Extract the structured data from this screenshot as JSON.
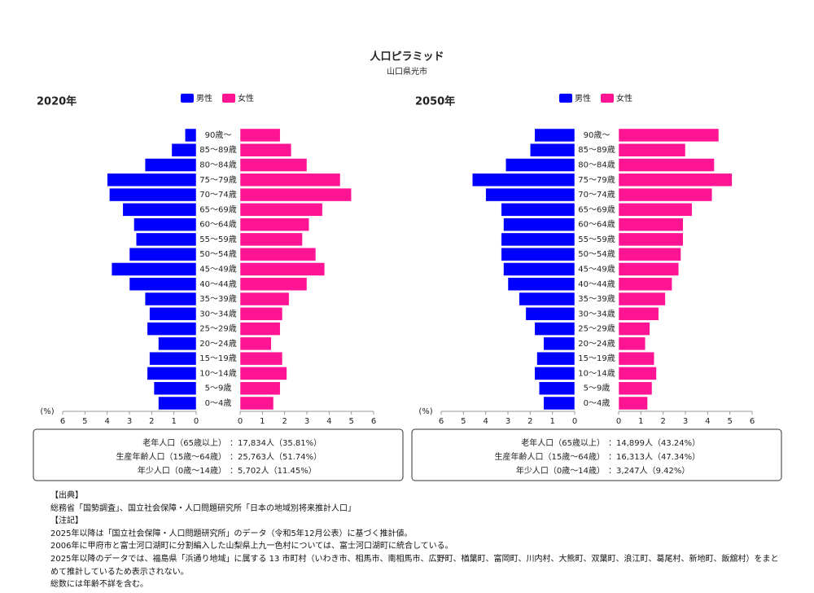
{
  "header": {
    "title": "人口ピラミッド",
    "subtitle": "山口県光市"
  },
  "chart_data": [
    {
      "type": "pyramid",
      "title": "2020年",
      "xlabel": "(%)",
      "categories": [
        "0～4歳",
        "5～9歳",
        "10～14歳",
        "15～19歳",
        "20～24歳",
        "25～29歳",
        "30～34歳",
        "35～39歳",
        "40～44歳",
        "45～49歳",
        "50～54歳",
        "55～59歳",
        "60～64歳",
        "65～69歳",
        "70～74歳",
        "75～79歳",
        "80～84歳",
        "85～89歳",
        "90歳～"
      ],
      "series": [
        {
          "name": "男性",
          "color": "#0000ff",
          "values": [
            1.7,
            1.9,
            2.2,
            2.1,
            1.7,
            2.2,
            2.1,
            2.3,
            3.0,
            3.8,
            3.0,
            2.7,
            2.8,
            3.3,
            3.9,
            4.0,
            2.3,
            1.1,
            0.5
          ]
        },
        {
          "name": "女性",
          "color": "#ff1493",
          "values": [
            1.5,
            1.8,
            2.1,
            1.9,
            1.4,
            1.8,
            1.9,
            2.2,
            3.0,
            3.8,
            3.4,
            2.8,
            3.1,
            3.7,
            5.0,
            4.5,
            3.0,
            2.3,
            1.8
          ]
        }
      ],
      "xlim": [
        0,
        6
      ],
      "xticks": [
        0,
        1,
        2,
        3,
        4,
        5,
        6
      ],
      "grid": false,
      "summary": [
        {
          "label": "老年人口（65歳以上）",
          "value": "：17,834人（35.81%）"
        },
        {
          "label": "生産年齢人口（15歳～64歳）",
          "value": "：25,763人（51.74%）"
        },
        {
          "label": "年少人口（0歳～14歳）",
          "value": "：5,702人（11.45%）"
        }
      ]
    },
    {
      "type": "pyramid",
      "title": "2050年",
      "xlabel": "(%)",
      "categories": [
        "0～4歳",
        "5～9歳",
        "10～14歳",
        "15～19歳",
        "20～24歳",
        "25～29歳",
        "30～34歳",
        "35～39歳",
        "40～44歳",
        "45～49歳",
        "50～54歳",
        "55～59歳",
        "60～64歳",
        "65～69歳",
        "70～74歳",
        "75～79歳",
        "80～84歳",
        "85～89歳",
        "90歳～"
      ],
      "series": [
        {
          "name": "男性",
          "color": "#0000ff",
          "values": [
            1.4,
            1.6,
            1.8,
            1.7,
            1.4,
            1.8,
            2.2,
            2.5,
            3.0,
            3.2,
            3.3,
            3.3,
            3.2,
            3.3,
            4.0,
            4.6,
            3.1,
            2.0,
            1.8
          ]
        },
        {
          "name": "女性",
          "color": "#ff1493",
          "values": [
            1.3,
            1.5,
            1.7,
            1.6,
            1.2,
            1.4,
            1.8,
            2.1,
            2.4,
            2.7,
            2.8,
            2.9,
            2.9,
            3.3,
            4.2,
            5.1,
            4.3,
            3.0,
            4.5
          ]
        }
      ],
      "xlim": [
        0,
        6
      ],
      "xticks": [
        0,
        1,
        2,
        3,
        4,
        5,
        6
      ],
      "grid": false,
      "summary": [
        {
          "label": "老年人口（65歳以上）",
          "value": "：14,899人（43.24%）"
        },
        {
          "label": "生産年齢人口（15歳～64歳）",
          "value": "：16,313人（47.34%）"
        },
        {
          "label": "年少人口（0歳～14歳）",
          "value": "：3,247人（9.42%）"
        }
      ]
    }
  ],
  "footer": {
    "source_heading": "【出典】",
    "source": "総務省「国勢調査」、国立社会保障・人口問題研究所「日本の地域別将来推計人口」",
    "notes_heading": "【注記】",
    "notes": [
      "2025年以降は「国立社会保障・人口問題研究所」のデータ（令和5年12月公表）に基づく推計値。",
      "2006年に甲府市と富士河口湖町に分割編入した山梨県上九一色村については、富士河口湖町に統合している。",
      "2025年以降のデータでは、福島県「浜通り地域」に属する 13 市町村（いわき市、相馬市、南相馬市、広野町、楢葉町、富岡町、川内村、大熊町、双葉町、浪江町、葛尾村、新地町、飯舘村）をまとめて推計しているため表示されない。",
      "総数には年齢不詳を含む。"
    ]
  }
}
